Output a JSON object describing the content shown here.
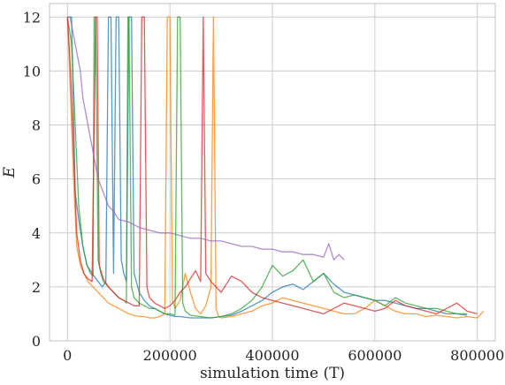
{
  "chart_data": {
    "type": "line",
    "xlabel": "simulation time (T)",
    "ylabel": "E",
    "xlim": [
      -35000,
      835000
    ],
    "ylim": [
      0,
      12.5
    ],
    "x_ticks": [
      0,
      200000,
      400000,
      600000,
      800000
    ],
    "x_tick_labels": [
      "0",
      "200000",
      "400000",
      "600000",
      "800000"
    ],
    "y_ticks": [
      0,
      2,
      4,
      6,
      8,
      10,
      12
    ],
    "y_tick_labels": [
      "0",
      "2",
      "4",
      "6",
      "8",
      "10",
      "12"
    ],
    "grid": true,
    "legend": "none",
    "colors": [
      "#1f77b4",
      "#ff7f0e",
      "#2ca02c",
      "#d62728",
      "#9467bd"
    ],
    "series": [
      {
        "x": [
          0,
          8000,
          15000,
          22000,
          30000,
          38000,
          45000,
          52000,
          60000,
          68000,
          75000,
          80000,
          85000,
          90000,
          95000,
          100000,
          105000,
          110000,
          115000,
          120000,
          125000,
          130000,
          140000,
          150000,
          160000,
          170000,
          180000,
          190000,
          200000,
          210000,
          220000,
          240000,
          260000,
          280000,
          300000,
          320000,
          340000,
          360000,
          380000,
          400000,
          420000,
          440000,
          460000,
          480000,
          500000,
          520000,
          540000,
          560000,
          580000,
          600000,
          620000,
          640000,
          660000,
          680000,
          700000,
          720000,
          740000,
          760000,
          780000
        ],
        "y": [
          12,
          12,
          5.5,
          4.5,
          3.5,
          2.8,
          2.6,
          2.4,
          2.2,
          2.0,
          2.2,
          12,
          12,
          2.5,
          12,
          12,
          3,
          2.5,
          2.2,
          12,
          12,
          2.5,
          1.8,
          1.5,
          1.3,
          1.2,
          1.1,
          1.0,
          0.95,
          0.9,
          0.9,
          0.85,
          0.85,
          0.85,
          0.9,
          0.95,
          1.1,
          1.3,
          1.5,
          1.8,
          2.0,
          2.1,
          1.9,
          2.2,
          2.5,
          2.1,
          1.8,
          1.7,
          1.6,
          1.5,
          1.5,
          1.4,
          1.3,
          1.2,
          1.2,
          1.1,
          1.0,
          1.0,
          0.95
        ]
      },
      {
        "x": [
          0,
          6000,
          12000,
          18000,
          25000,
          32000,
          40000,
          50000,
          60000,
          70000,
          80000,
          90000,
          100000,
          110000,
          120000,
          130000,
          140000,
          150000,
          160000,
          170000,
          180000,
          190000,
          195000,
          200000,
          205000,
          210000,
          220000,
          230000,
          240000,
          250000,
          260000,
          270000,
          280000,
          285000,
          290000,
          295000,
          300000,
          320000,
          340000,
          360000,
          380000,
          400000,
          420000,
          440000,
          460000,
          480000,
          500000,
          520000,
          540000,
          560000,
          580000,
          600000,
          620000,
          640000,
          660000,
          680000,
          700000,
          720000,
          740000,
          760000,
          780000,
          800000,
          812000
        ],
        "y": [
          12,
          9,
          6,
          3.5,
          2.8,
          2.5,
          2.2,
          2.0,
          1.8,
          1.6,
          1.4,
          1.3,
          1.2,
          1.1,
          1.0,
          0.95,
          0.9,
          0.9,
          0.85,
          0.85,
          0.9,
          1.0,
          12,
          12,
          1.5,
          1.2,
          1.5,
          2.5,
          1.8,
          1.2,
          1.0,
          1.3,
          2.0,
          12,
          1.2,
          0.9,
          0.85,
          0.9,
          1.0,
          1.1,
          1.3,
          1.4,
          1.6,
          1.5,
          1.4,
          1.3,
          1.2,
          1.1,
          1.0,
          1.0,
          1.2,
          1.5,
          1.3,
          1.1,
          1.0,
          1.0,
          0.9,
          0.95,
          0.9,
          0.85,
          0.9,
          0.85,
          1.1
        ]
      },
      {
        "x": [
          0,
          8000,
          15000,
          22000,
          30000,
          38000,
          45000,
          50000,
          52000,
          55000,
          60000,
          65000,
          70000,
          80000,
          90000,
          100000,
          110000,
          115000,
          118000,
          120000,
          125000,
          130000,
          140000,
          150000,
          160000,
          170000,
          180000,
          190000,
          200000,
          210000,
          215000,
          220000,
          225000,
          230000,
          240000,
          260000,
          280000,
          300000,
          320000,
          340000,
          360000,
          380000,
          400000,
          420000,
          440000,
          460000,
          480000,
          500000,
          520000,
          540000,
          560000,
          580000,
          600000,
          620000,
          640000,
          660000,
          680000,
          700000,
          720000,
          740000,
          760000,
          780000
        ],
        "y": [
          12,
          11,
          8,
          5,
          3.5,
          2.8,
          2.5,
          2.4,
          12,
          12,
          3,
          2.5,
          2.2,
          2.0,
          1.8,
          1.6,
          1.5,
          1.4,
          12,
          12,
          2.0,
          1.6,
          1.4,
          1.3,
          1.2,
          1.2,
          1.1,
          1.0,
          1.0,
          0.95,
          12,
          12,
          1.4,
          1.1,
          0.95,
          0.9,
          0.85,
          0.9,
          1.0,
          1.2,
          1.5,
          2.0,
          2.8,
          2.4,
          2.6,
          3.0,
          2.2,
          2.5,
          1.8,
          1.6,
          1.7,
          1.6,
          1.5,
          1.3,
          1.6,
          1.4,
          1.3,
          1.2,
          1.2,
          1.1,
          1.0,
          1.0
        ]
      },
      {
        "x": [
          0,
          6000,
          12000,
          18000,
          25000,
          32000,
          40000,
          48000,
          55000,
          58000,
          62000,
          70000,
          80000,
          90000,
          100000,
          110000,
          120000,
          130000,
          140000,
          145000,
          150000,
          155000,
          160000,
          170000,
          180000,
          190000,
          200000,
          210000,
          220000,
          230000,
          240000,
          250000,
          260000,
          265000,
          270000,
          280000,
          290000,
          300000,
          320000,
          340000,
          360000,
          380000,
          400000,
          420000,
          440000,
          460000,
          480000,
          500000,
          520000,
          540000,
          560000,
          580000,
          600000,
          620000,
          640000,
          660000,
          680000,
          700000,
          720000,
          740000,
          760000,
          780000,
          800000
        ],
        "y": [
          12,
          10,
          7,
          4,
          3,
          2.5,
          2.3,
          2.2,
          12,
          12,
          2.8,
          2.3,
          2.0,
          1.8,
          1.6,
          1.5,
          1.4,
          1.3,
          1.3,
          12,
          12,
          2.0,
          1.6,
          1.4,
          1.3,
          1.2,
          1.3,
          1.5,
          1.8,
          2.0,
          2.3,
          2.6,
          2.2,
          12,
          2.5,
          2.2,
          2.0,
          1.8,
          2.4,
          2.2,
          1.8,
          1.6,
          1.5,
          1.4,
          1.3,
          1.2,
          1.1,
          1.0,
          1.2,
          1.4,
          1.3,
          1.2,
          1.1,
          1.2,
          1.5,
          1.3,
          1.2,
          1.1,
          1.0,
          1.2,
          1.4,
          1.1,
          1.0
        ]
      },
      {
        "x": [
          0,
          5000,
          10000,
          15000,
          20000,
          25000,
          30000,
          35000,
          40000,
          45000,
          50000,
          60000,
          70000,
          80000,
          90000,
          100000,
          120000,
          140000,
          160000,
          180000,
          200000,
          220000,
          240000,
          260000,
          280000,
          300000,
          320000,
          340000,
          360000,
          380000,
          400000,
          420000,
          440000,
          460000,
          480000,
          500000,
          510000,
          520000,
          530000,
          540000
        ],
        "y": [
          12,
          12,
          11.5,
          11,
          10.5,
          10,
          9,
          8.5,
          8,
          7.5,
          7,
          6,
          5.5,
          5,
          4.8,
          4.5,
          4.4,
          4.2,
          4.1,
          4.0,
          4.0,
          3.9,
          3.8,
          3.8,
          3.7,
          3.7,
          3.6,
          3.5,
          3.5,
          3.4,
          3.4,
          3.3,
          3.3,
          3.2,
          3.2,
          3.1,
          3.6,
          3.0,
          3.2,
          3.0
        ]
      }
    ]
  }
}
